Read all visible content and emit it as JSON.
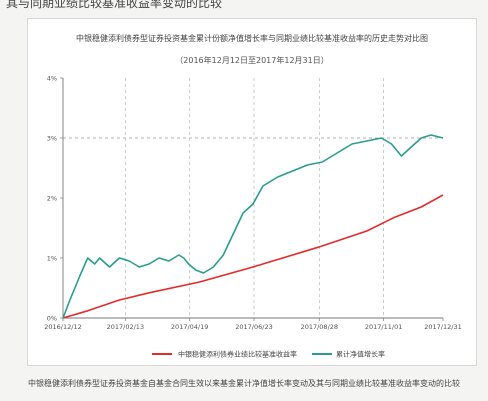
{
  "page": {
    "top_text": "其与同期业绩比较基准收益率变动的比较",
    "caption": "中银稳健添利债券型证券投资基金自基金合同生效以来基金累计净值增长率变动及其与同期业绩比较基准收益率变动的比较"
  },
  "chart_data": {
    "type": "line",
    "title": "中银稳健添利债券型证券投资基金累计份额净值增长率与同期业绩比较基准收益率的历史走势对比图",
    "subtitle": "（2016年12月12日至2017年12月31日）",
    "x_range": [
      "2016-12-12",
      "2017-12-31"
    ],
    "ylim": [
      0,
      4
    ],
    "y_ticks": [
      {
        "value": 0,
        "label": "0%"
      },
      {
        "value": 1,
        "label": "1%"
      },
      {
        "value": 2,
        "label": "2%"
      },
      {
        "value": 3,
        "label": "3%"
      },
      {
        "value": 4,
        "label": "4%"
      }
    ],
    "x_ticks": [
      {
        "date": "2016-12-12",
        "label": "2016/12/12"
      },
      {
        "date": "2017-02-13",
        "label": "2017/02/13"
      },
      {
        "date": "2017-04-19",
        "label": "2017/04/19"
      },
      {
        "date": "2017-06-23",
        "label": "2017/06/23"
      },
      {
        "date": "2017-08-28",
        "label": "2017/08/28"
      },
      {
        "date": "2017-11-01",
        "label": "2017/11/01"
      },
      {
        "date": "2017-12-31",
        "label": "2017/12/31"
      }
    ],
    "reference_line_y": 3,
    "grid": "dashed",
    "legend": "bottom",
    "series": [
      {
        "name": "中银稳健添利债券业绩比较基准收益率",
        "color": "#e52a2a",
        "points": [
          [
            "2016-12-12",
            0.0
          ],
          [
            "2017-01-06",
            0.12
          ],
          [
            "2017-02-07",
            0.3
          ],
          [
            "2017-03-09",
            0.42
          ],
          [
            "2017-04-29",
            0.6
          ],
          [
            "2017-06-22",
            0.85
          ],
          [
            "2017-08-27",
            1.18
          ],
          [
            "2017-10-15",
            1.45
          ],
          [
            "2017-11-11",
            1.67
          ],
          [
            "2017-12-09",
            1.85
          ],
          [
            "2017-12-31",
            2.05
          ]
        ]
      },
      {
        "name": "累计净值增长率",
        "color": "#2a9d8f",
        "points": [
          [
            "2016-12-12",
            0.0
          ],
          [
            "2016-12-19",
            0.3
          ],
          [
            "2016-12-29",
            0.7
          ],
          [
            "2017-01-06",
            1.0
          ],
          [
            "2017-01-13",
            0.9
          ],
          [
            "2017-01-18",
            1.0
          ],
          [
            "2017-01-28",
            0.85
          ],
          [
            "2017-02-07",
            1.0
          ],
          [
            "2017-02-17",
            0.95
          ],
          [
            "2017-02-27",
            0.85
          ],
          [
            "2017-03-09",
            0.9
          ],
          [
            "2017-03-19",
            1.0
          ],
          [
            "2017-03-29",
            0.95
          ],
          [
            "2017-04-08",
            1.05
          ],
          [
            "2017-04-13",
            1.0
          ],
          [
            "2017-04-18",
            0.9
          ],
          [
            "2017-04-25",
            0.8
          ],
          [
            "2017-05-03",
            0.75
          ],
          [
            "2017-05-13",
            0.85
          ],
          [
            "2017-05-23",
            1.05
          ],
          [
            "2017-06-02",
            1.4
          ],
          [
            "2017-06-12",
            1.75
          ],
          [
            "2017-06-22",
            1.9
          ],
          [
            "2017-07-02",
            2.2
          ],
          [
            "2017-07-17",
            2.35
          ],
          [
            "2017-08-01",
            2.45
          ],
          [
            "2017-08-16",
            2.55
          ],
          [
            "2017-08-31",
            2.6
          ],
          [
            "2017-09-15",
            2.75
          ],
          [
            "2017-09-30",
            2.9
          ],
          [
            "2017-10-15",
            2.95
          ],
          [
            "2017-10-30",
            3.0
          ],
          [
            "2017-11-09",
            2.9
          ],
          [
            "2017-11-19",
            2.7
          ],
          [
            "2017-11-29",
            2.85
          ],
          [
            "2017-12-09",
            3.0
          ],
          [
            "2017-12-19",
            3.05
          ],
          [
            "2017-12-31",
            3.0
          ]
        ]
      }
    ]
  }
}
